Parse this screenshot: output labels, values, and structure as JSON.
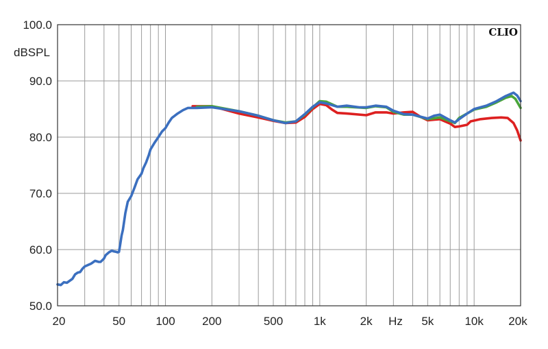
{
  "chart_data": {
    "type": "line",
    "title": "",
    "brand": "CLIO",
    "xlabel": "Hz",
    "ylabel": "dBSPL",
    "xscale": "log",
    "xlim": [
      20,
      20000
    ],
    "ylim": [
      50,
      100
    ],
    "grid": true,
    "x_ticks": [
      {
        "value": 20,
        "label": "20"
      },
      {
        "value": 50,
        "label": "50"
      },
      {
        "value": 100,
        "label": "100"
      },
      {
        "value": 200,
        "label": "200"
      },
      {
        "value": 500,
        "label": "500"
      },
      {
        "value": 1000,
        "label": "1k"
      },
      {
        "value": 2000,
        "label": "2k"
      },
      {
        "value": 5000,
        "label": "5k"
      },
      {
        "value": 10000,
        "label": "10k"
      },
      {
        "value": 20000,
        "label": "20k"
      }
    ],
    "y_ticks": [
      {
        "value": 50,
        "label": "50.0"
      },
      {
        "value": 60,
        "label": "60.0"
      },
      {
        "value": 70,
        "label": "70.0"
      },
      {
        "value": 80,
        "label": "80.0"
      },
      {
        "value": 90,
        "label": "90.0"
      },
      {
        "value": 100,
        "label": "100.0"
      }
    ],
    "series": [
      {
        "color": "#dd2020",
        "points": [
          [
            150,
            85.5
          ],
          [
            200,
            85.5
          ],
          [
            300,
            84.2
          ],
          [
            400,
            83.5
          ],
          [
            500,
            82.9
          ],
          [
            600,
            82.5
          ],
          [
            700,
            82.6
          ],
          [
            800,
            83.6
          ],
          [
            900,
            85.0
          ],
          [
            1000,
            85.9
          ],
          [
            1100,
            85.7
          ],
          [
            1200,
            84.9
          ],
          [
            1300,
            84.3
          ],
          [
            1500,
            84.2
          ],
          [
            2000,
            83.9
          ],
          [
            2300,
            84.4
          ],
          [
            2700,
            84.4
          ],
          [
            3000,
            84.2
          ],
          [
            3500,
            84.4
          ],
          [
            4000,
            84.5
          ],
          [
            4500,
            83.6
          ],
          [
            5000,
            83.0
          ],
          [
            6000,
            83.2
          ],
          [
            7000,
            82.4
          ],
          [
            7500,
            81.8
          ],
          [
            8000,
            81.9
          ],
          [
            9000,
            82.2
          ],
          [
            9500,
            82.8
          ],
          [
            11000,
            83.2
          ],
          [
            13000,
            83.4
          ],
          [
            15000,
            83.5
          ],
          [
            16500,
            83.4
          ],
          [
            18000,
            82.5
          ],
          [
            19000,
            81.2
          ],
          [
            20000,
            79.4
          ]
        ]
      },
      {
        "color": "#4aa63a",
        "points": [
          [
            160,
            85.4
          ],
          [
            200,
            85.5
          ],
          [
            300,
            84.6
          ],
          [
            400,
            83.8
          ],
          [
            500,
            83.0
          ],
          [
            600,
            82.6
          ],
          [
            700,
            82.8
          ],
          [
            800,
            84.0
          ],
          [
            900,
            85.3
          ],
          [
            1000,
            86.4
          ],
          [
            1100,
            86.3
          ],
          [
            1300,
            85.4
          ],
          [
            1500,
            85.4
          ],
          [
            2000,
            85.2
          ],
          [
            2300,
            85.5
          ],
          [
            2700,
            85.3
          ],
          [
            3000,
            84.5
          ],
          [
            3500,
            84.0
          ],
          [
            4000,
            84.0
          ],
          [
            5000,
            83.2
          ],
          [
            6000,
            83.5
          ],
          [
            7000,
            82.8
          ],
          [
            7500,
            82.5
          ],
          [
            8000,
            83.4
          ],
          [
            9000,
            84.2
          ],
          [
            10000,
            84.9
          ],
          [
            12000,
            85.4
          ],
          [
            14000,
            86.2
          ],
          [
            16000,
            87.0
          ],
          [
            17500,
            87.3
          ],
          [
            18500,
            86.8
          ],
          [
            20000,
            85.2
          ]
        ]
      },
      {
        "color": "#3b6fbf",
        "points": [
          [
            20,
            53.8
          ],
          [
            21,
            53.7
          ],
          [
            22,
            54.2
          ],
          [
            23,
            54.1
          ],
          [
            25,
            54.8
          ],
          [
            26,
            55.6
          ],
          [
            27,
            55.9
          ],
          [
            28,
            56.0
          ],
          [
            29,
            56.6
          ],
          [
            30,
            57.0
          ],
          [
            33,
            57.5
          ],
          [
            35,
            58.0
          ],
          [
            37,
            57.8
          ],
          [
            38,
            57.8
          ],
          [
            40,
            58.4
          ],
          [
            41,
            59.0
          ],
          [
            43,
            59.5
          ],
          [
            45,
            59.8
          ],
          [
            46,
            59.7
          ],
          [
            48,
            59.6
          ],
          [
            49,
            59.5
          ],
          [
            50,
            59.6
          ],
          [
            51,
            61.0
          ],
          [
            52,
            62.5
          ],
          [
            53,
            63.5
          ],
          [
            55,
            66.5
          ],
          [
            57,
            68.5
          ],
          [
            60,
            69.5
          ],
          [
            63,
            71.0
          ],
          [
            66,
            72.5
          ],
          [
            70,
            73.5
          ],
          [
            72,
            74.5
          ],
          [
            75,
            75.5
          ],
          [
            78,
            76.8
          ],
          [
            80,
            77.8
          ],
          [
            85,
            79.0
          ],
          [
            90,
            80.0
          ],
          [
            95,
            81.0
          ],
          [
            100,
            81.6
          ],
          [
            105,
            82.6
          ],
          [
            110,
            83.4
          ],
          [
            120,
            84.2
          ],
          [
            130,
            84.8
          ],
          [
            140,
            85.2
          ],
          [
            160,
            85.2
          ],
          [
            200,
            85.3
          ],
          [
            300,
            84.6
          ],
          [
            400,
            83.8
          ],
          [
            500,
            83.0
          ],
          [
            600,
            82.5
          ],
          [
            700,
            82.8
          ],
          [
            800,
            84.1
          ],
          [
            900,
            85.4
          ],
          [
            1000,
            86.2
          ],
          [
            1100,
            86.0
          ],
          [
            1300,
            85.4
          ],
          [
            1500,
            85.6
          ],
          [
            1800,
            85.3
          ],
          [
            2000,
            85.3
          ],
          [
            2300,
            85.6
          ],
          [
            2700,
            85.4
          ],
          [
            3000,
            84.7
          ],
          [
            3500,
            84.1
          ],
          [
            4000,
            84.0
          ],
          [
            5000,
            83.3
          ],
          [
            5500,
            83.8
          ],
          [
            6000,
            84.0
          ],
          [
            7000,
            83.0
          ],
          [
            7500,
            82.6
          ],
          [
            8000,
            83.2
          ],
          [
            9000,
            84.2
          ],
          [
            10000,
            85.0
          ],
          [
            12000,
            85.6
          ],
          [
            14000,
            86.4
          ],
          [
            16000,
            87.3
          ],
          [
            18000,
            87.9
          ],
          [
            19000,
            87.4
          ],
          [
            20000,
            86.4
          ]
        ]
      }
    ]
  }
}
